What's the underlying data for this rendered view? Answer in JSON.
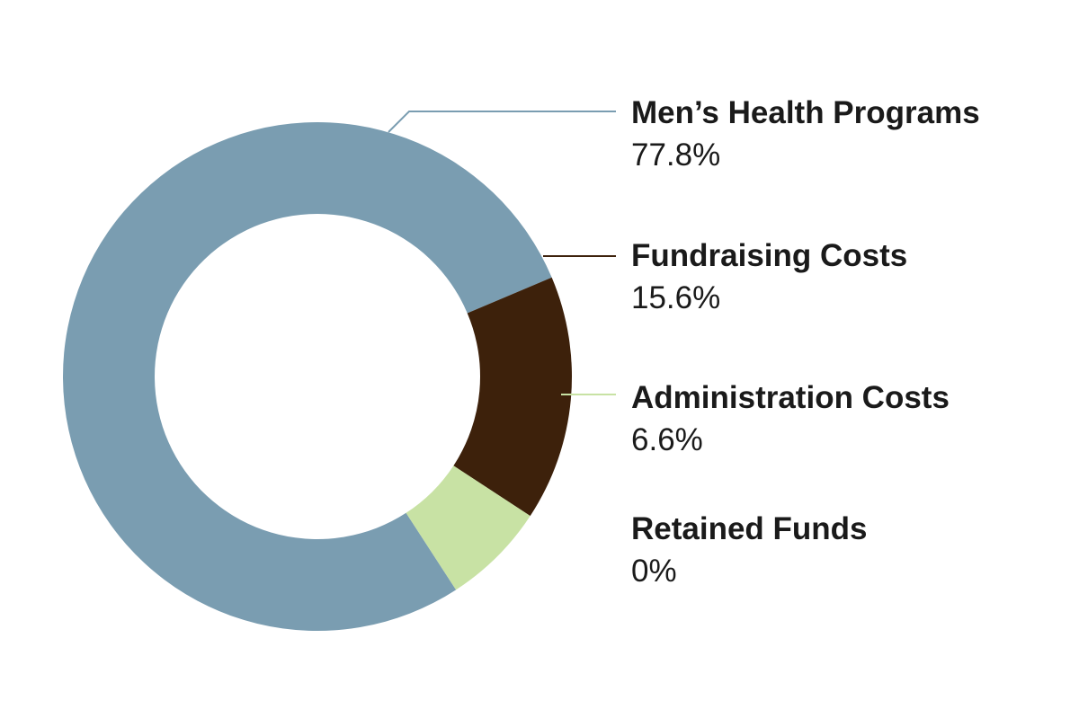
{
  "chart_data": {
    "type": "pie",
    "style": "donut",
    "title": "",
    "categories": [
      "Men’s Health Programs",
      "Fundraising Costs",
      "Administration Costs",
      "Retained Funds"
    ],
    "values": [
      77.8,
      15.6,
      6.6,
      0
    ],
    "value_labels": [
      "77.8%",
      "15.6%",
      "6.6%",
      "0%"
    ],
    "colors": [
      "#7a9db1",
      "#3d210b",
      "#c8e2a4",
      "#ffffff"
    ],
    "legend": "right"
  }
}
